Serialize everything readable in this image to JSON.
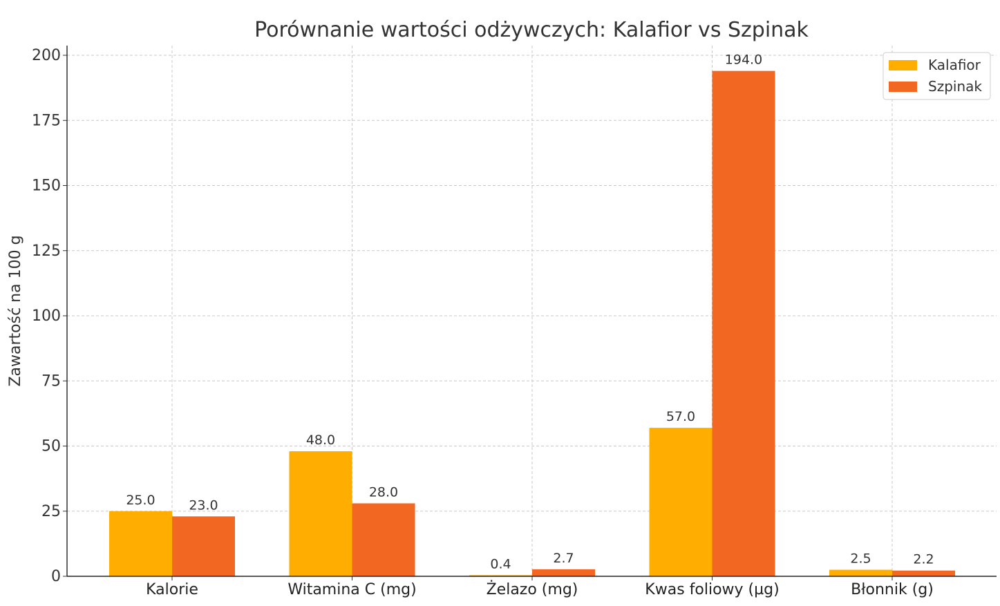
{
  "chart_data": {
    "type": "bar",
    "title": "Porównanie wartości odżywczych: Kalafior vs Szpinak",
    "xlabel": "",
    "ylabel": "Zawartość na 100 g",
    "categories": [
      "Kalorie",
      "Witamina C (mg)",
      "Żelazo (mg)",
      "Kwas foliowy (µg)",
      "Błonnik (g)"
    ],
    "series": [
      {
        "name": "Kalafior",
        "values": [
          25.0,
          48.0,
          0.4,
          57.0,
          2.5
        ],
        "color": "#FFAE00"
      },
      {
        "name": "Szpinak",
        "values": [
          23.0,
          28.0,
          2.7,
          194.0,
          2.2
        ],
        "color": "#F26822"
      }
    ],
    "data_labels": [
      [
        "25.0",
        "48.0",
        "0.4",
        "57.0",
        "2.5"
      ],
      [
        "23.0",
        "28.0",
        "2.7",
        "194.0",
        "2.2"
      ]
    ],
    "yticks": [
      "0",
      "25",
      "50",
      "75",
      "100",
      "125",
      "150",
      "175",
      "200"
    ],
    "ylim": [
      0,
      205
    ],
    "grid": true,
    "legend_position": "top-right"
  }
}
